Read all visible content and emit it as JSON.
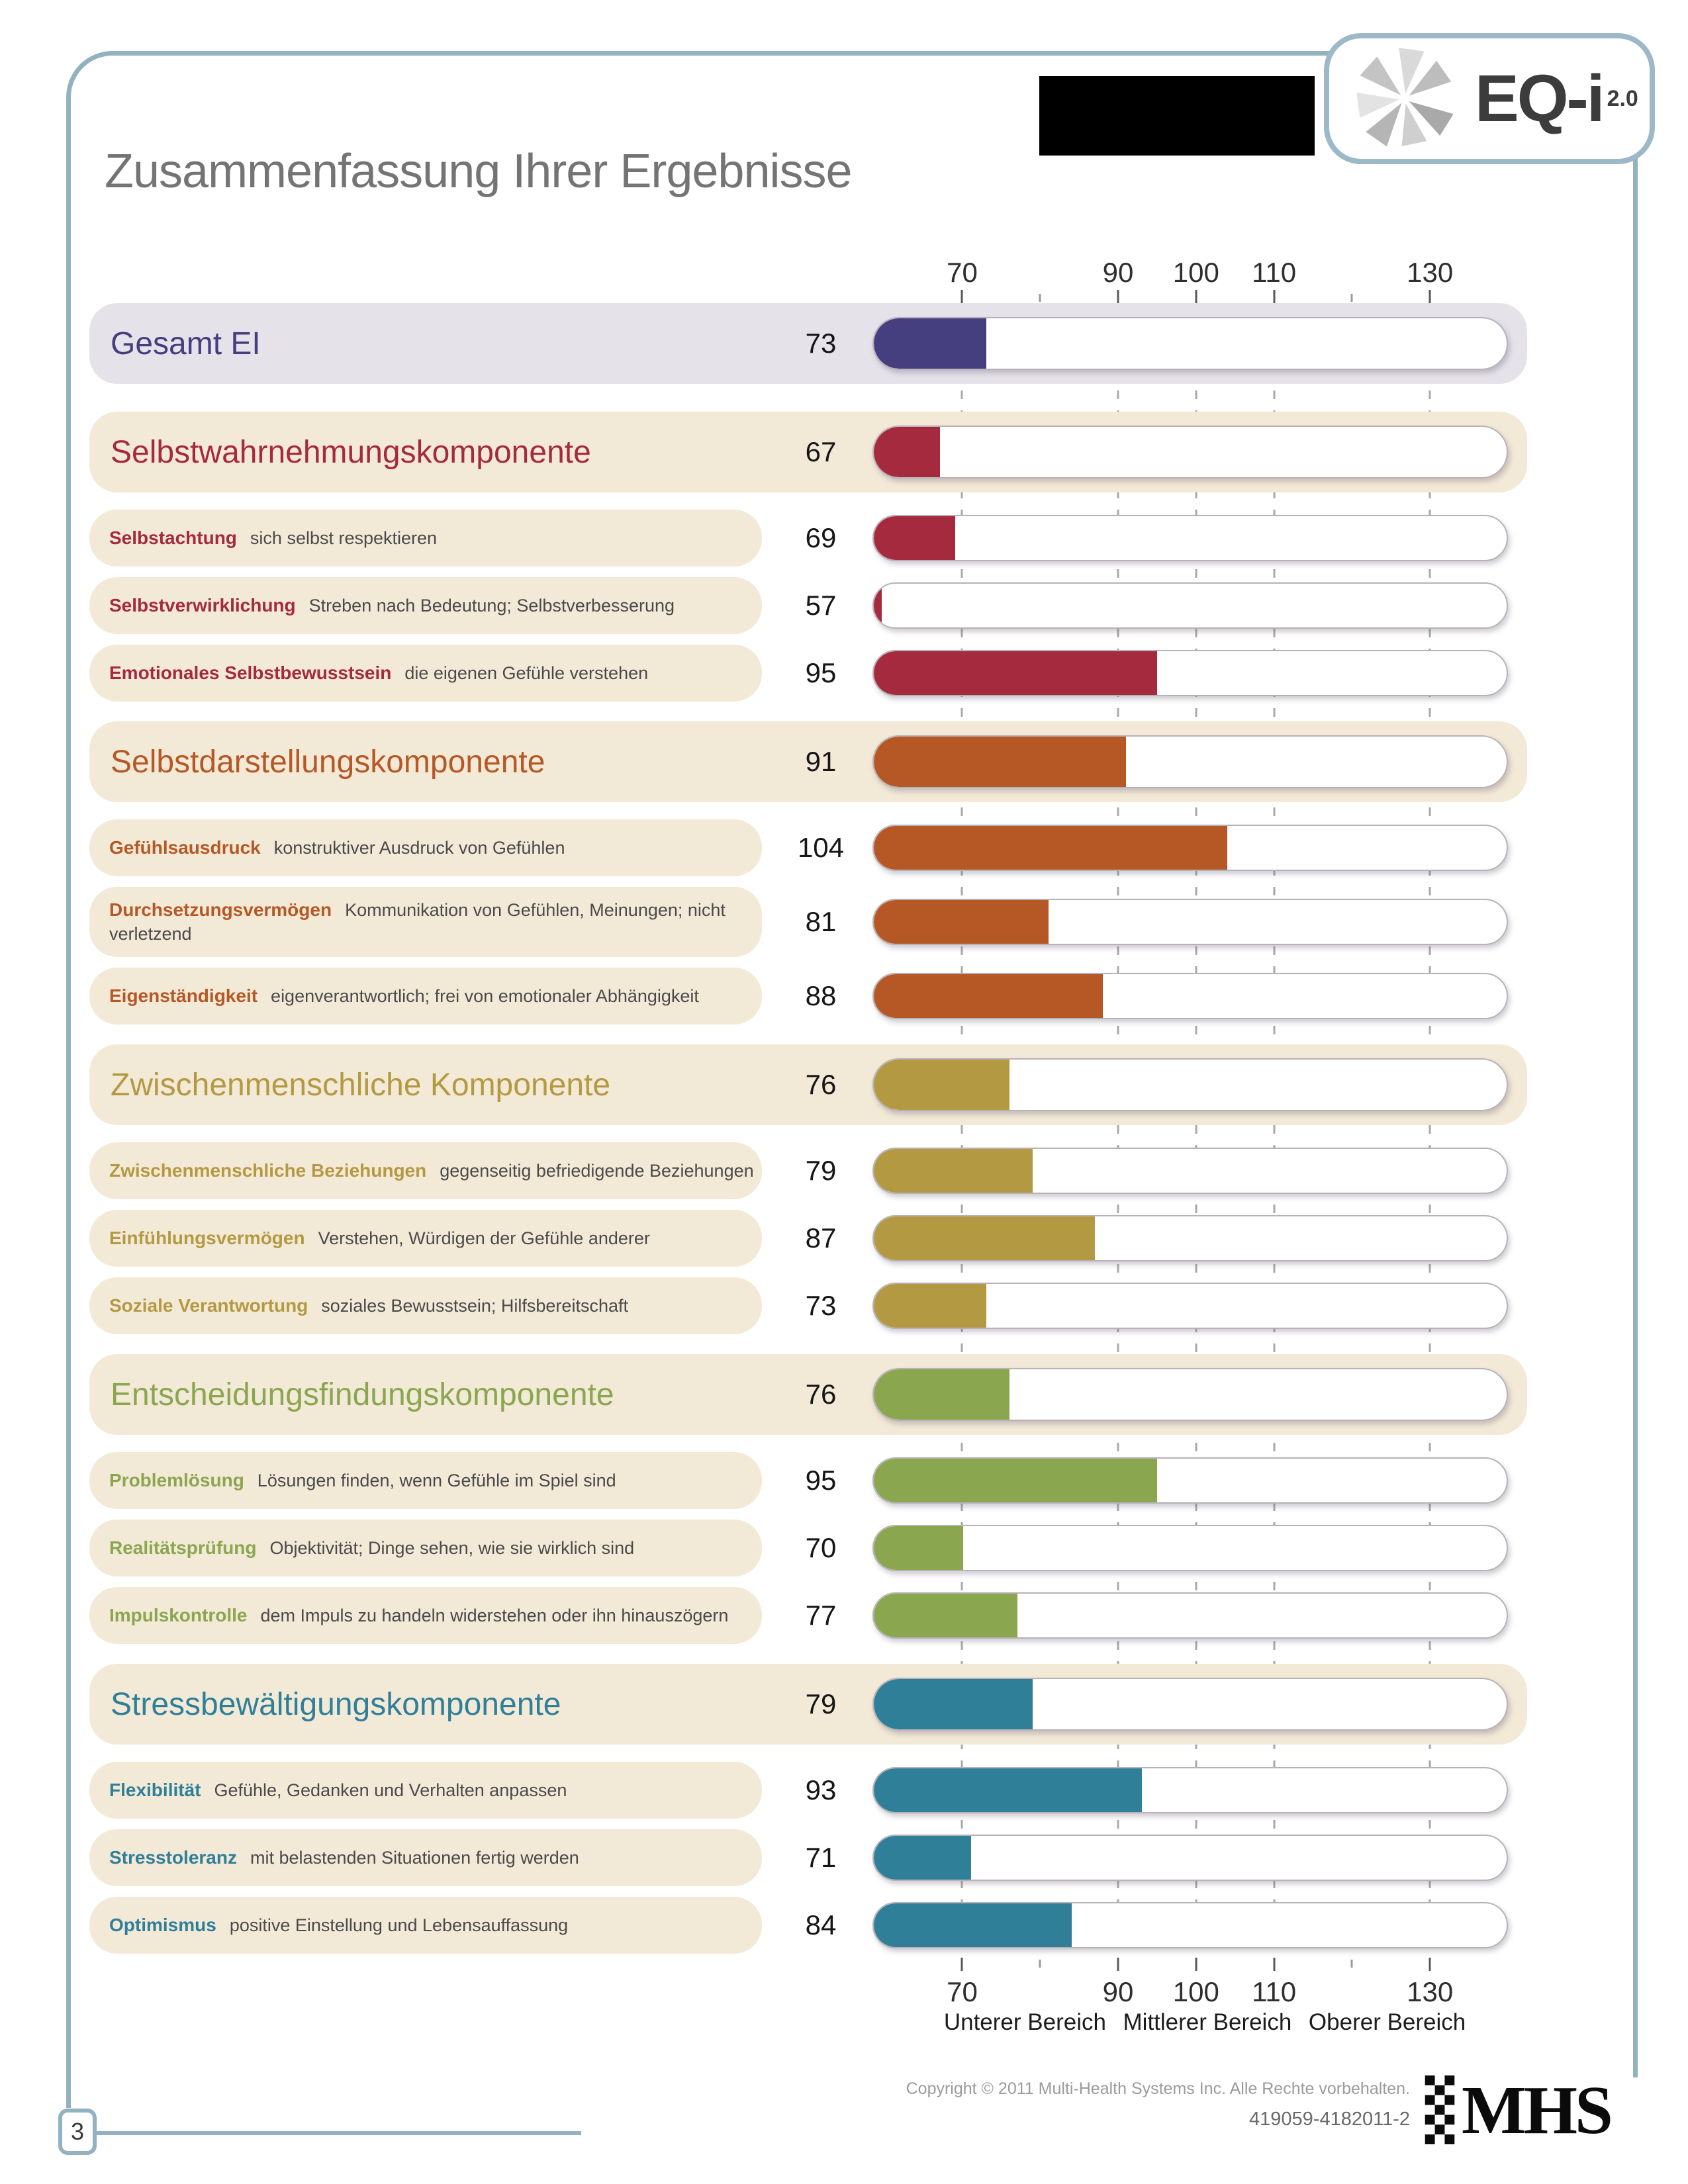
{
  "page": {
    "title": "Zusammenfassung Ihrer Ergebnisse",
    "page_number": "3",
    "logo": {
      "text": "EQ-i",
      "sup": "2.0"
    },
    "footer": {
      "copyright": "Copyright © 2011 Multi-Health Systems Inc. Alle Rechte vorbehalten.",
      "serial": "419059-4182011-2",
      "brand": "MHS"
    }
  },
  "colors": {
    "frame": "#92b2c0",
    "total": "#453e7f",
    "total_band": "#e6e2ea",
    "cream_band": "#f3e9d7",
    "self_perception": "#a52a3d",
    "self_expression": "#b65826",
    "interpersonal": "#b39a42",
    "decision_making": "#8aa750",
    "stress_management": "#2f7f99"
  },
  "axis": {
    "legend": [
      "Unterer Bereich",
      "Mittlerer Bereich",
      "Oberer Bereich"
    ]
  },
  "sections": [
    {
      "color": "#453e7f",
      "band": "#e6e2ea",
      "header": {
        "label": "Gesamt EI",
        "value": 73
      },
      "subs": []
    },
    {
      "color": "#a52a3d",
      "band": "#f3e9d7",
      "header": {
        "label": "Selbstwahrnehmungskomponente",
        "value": 67
      },
      "subs": [
        {
          "name": "Selbstachtung",
          "desc": "sich selbst respektieren",
          "value": 69
        },
        {
          "name": "Selbstverwirklichung",
          "desc": "Streben nach Bedeutung; Selbstverbesserung",
          "value": 57
        },
        {
          "name": "Emotionales Selbstbewusstsein",
          "desc": "die eigenen Gefühle verstehen",
          "value": 95
        }
      ]
    },
    {
      "color": "#b65826",
      "band": "#f3e9d7",
      "header": {
        "label": "Selbstdarstellungskomponente",
        "value": 91
      },
      "subs": [
        {
          "name": "Gefühlsausdruck",
          "desc": "konstruktiver Ausdruck von Gefühlen",
          "value": 104
        },
        {
          "name": "Durchsetzungsvermögen",
          "desc": "Kommunikation von Gefühlen, Meinungen; nicht verletzend",
          "value": 81
        },
        {
          "name": "Eigenständigkeit",
          "desc": "eigenverantwortlich; frei von emotionaler Abhängigkeit",
          "value": 88
        }
      ]
    },
    {
      "color": "#b39a42",
      "band": "#f3e9d7",
      "header": {
        "label": "Zwischenmenschliche Komponente",
        "value": 76
      },
      "subs": [
        {
          "name": "Zwischenmenschliche Beziehungen",
          "desc": "gegenseitig befriedigende Beziehungen",
          "value": 79
        },
        {
          "name": "Einfühlungsvermögen",
          "desc": "Verstehen, Würdigen der Gefühle anderer",
          "value": 87
        },
        {
          "name": "Soziale Verantwortung",
          "desc": "soziales Bewusstsein; Hilfsbereitschaft",
          "value": 73
        }
      ]
    },
    {
      "color": "#8aa750",
      "band": "#f3e9d7",
      "header": {
        "label": "Entscheidungsfindungskomponente",
        "value": 76
      },
      "subs": [
        {
          "name": "Problemlösung",
          "desc": "Lösungen finden, wenn Gefühle im Spiel sind",
          "value": 95
        },
        {
          "name": "Realitätsprüfung",
          "desc": "Objektivität; Dinge sehen, wie sie wirklich sind",
          "value": 70
        },
        {
          "name": "Impulskontrolle",
          "desc": "dem Impuls zu handeln widerstehen oder ihn hinauszögern",
          "value": 77
        }
      ]
    },
    {
      "color": "#2f7f99",
      "band": "#f3e9d7",
      "header": {
        "label": "Stressbewältigungskomponente",
        "value": 79
      },
      "subs": [
        {
          "name": "Flexibilität",
          "desc": "Gefühle, Gedanken und Verhalten anpassen",
          "value": 93
        },
        {
          "name": "Stresstoleranz",
          "desc": "mit belastenden Situationen fertig werden",
          "value": 71
        },
        {
          "name": "Optimismus",
          "desc": "positive Einstellung und Lebensauffassung",
          "value": 84
        }
      ]
    }
  ],
  "chart_data": {
    "type": "bar",
    "title": "Zusammenfassung Ihrer Ergebnisse",
    "xlim": [
      58.5,
      140
    ],
    "x_ticks": [
      70,
      80,
      90,
      100,
      110,
      120,
      130
    ],
    "x_tick_labels": [
      "70",
      "",
      "90",
      "100",
      "110",
      "",
      "130"
    ],
    "range_legend": [
      "Unterer Bereich",
      "Mittlerer Bereich",
      "Oberer Bereich"
    ],
    "grid": "dashed vertical lines at labeled ticks",
    "legend_position": "bottom",
    "series": [
      {
        "label": "Gesamt EI",
        "value": 73,
        "group": "total",
        "color": "#453e7f"
      },
      {
        "label": "Selbstwahrnehmungskomponente",
        "value": 67,
        "group": "composite",
        "color": "#a52a3d"
      },
      {
        "label": "Selbstachtung",
        "value": 69,
        "group": "Selbstwahrnehmungskomponente",
        "color": "#a52a3d"
      },
      {
        "label": "Selbstverwirklichung",
        "value": 57,
        "group": "Selbstwahrnehmungskomponente",
        "color": "#a52a3d"
      },
      {
        "label": "Emotionales Selbstbewusstsein",
        "value": 95,
        "group": "Selbstwahrnehmungskomponente",
        "color": "#a52a3d"
      },
      {
        "label": "Selbstdarstellungskomponente",
        "value": 91,
        "group": "composite",
        "color": "#b65826"
      },
      {
        "label": "Gefühlsausdruck",
        "value": 104,
        "group": "Selbstdarstellungskomponente",
        "color": "#b65826"
      },
      {
        "label": "Durchsetzungsvermögen",
        "value": 81,
        "group": "Selbstdarstellungskomponente",
        "color": "#b65826"
      },
      {
        "label": "Eigenständigkeit",
        "value": 88,
        "group": "Selbstdarstellungskomponente",
        "color": "#b65826"
      },
      {
        "label": "Zwischenmenschliche Komponente",
        "value": 76,
        "group": "composite",
        "color": "#b39a42"
      },
      {
        "label": "Zwischenmenschliche Beziehungen",
        "value": 79,
        "group": "Zwischenmenschliche Komponente",
        "color": "#b39a42"
      },
      {
        "label": "Einfühlungsvermögen",
        "value": 87,
        "group": "Zwischenmenschliche Komponente",
        "color": "#b39a42"
      },
      {
        "label": "Soziale Verantwortung",
        "value": 73,
        "group": "Zwischenmenschliche Komponente",
        "color": "#b39a42"
      },
      {
        "label": "Entscheidungsfindungskomponente",
        "value": 76,
        "group": "composite",
        "color": "#8aa750"
      },
      {
        "label": "Problemlösung",
        "value": 95,
        "group": "Entscheidungsfindungskomponente",
        "color": "#8aa750"
      },
      {
        "label": "Realitätsprüfung",
        "value": 70,
        "group": "Entscheidungsfindungskomponente",
        "color": "#8aa750"
      },
      {
        "label": "Impulskontrolle",
        "value": 77,
        "group": "Entscheidungsfindungskomponente",
        "color": "#8aa750"
      },
      {
        "label": "Stressbewältigungskomponente",
        "value": 79,
        "group": "composite",
        "color": "#2f7f99"
      },
      {
        "label": "Flexibilität",
        "value": 93,
        "group": "Stressbewältigungskomponente",
        "color": "#2f7f99"
      },
      {
        "label": "Stresstoleranz",
        "value": 71,
        "group": "Stressbewältigungskomponente",
        "color": "#2f7f99"
      },
      {
        "label": "Optimismus",
        "value": 84,
        "group": "Stressbewältigungskomponente",
        "color": "#2f7f99"
      }
    ]
  }
}
